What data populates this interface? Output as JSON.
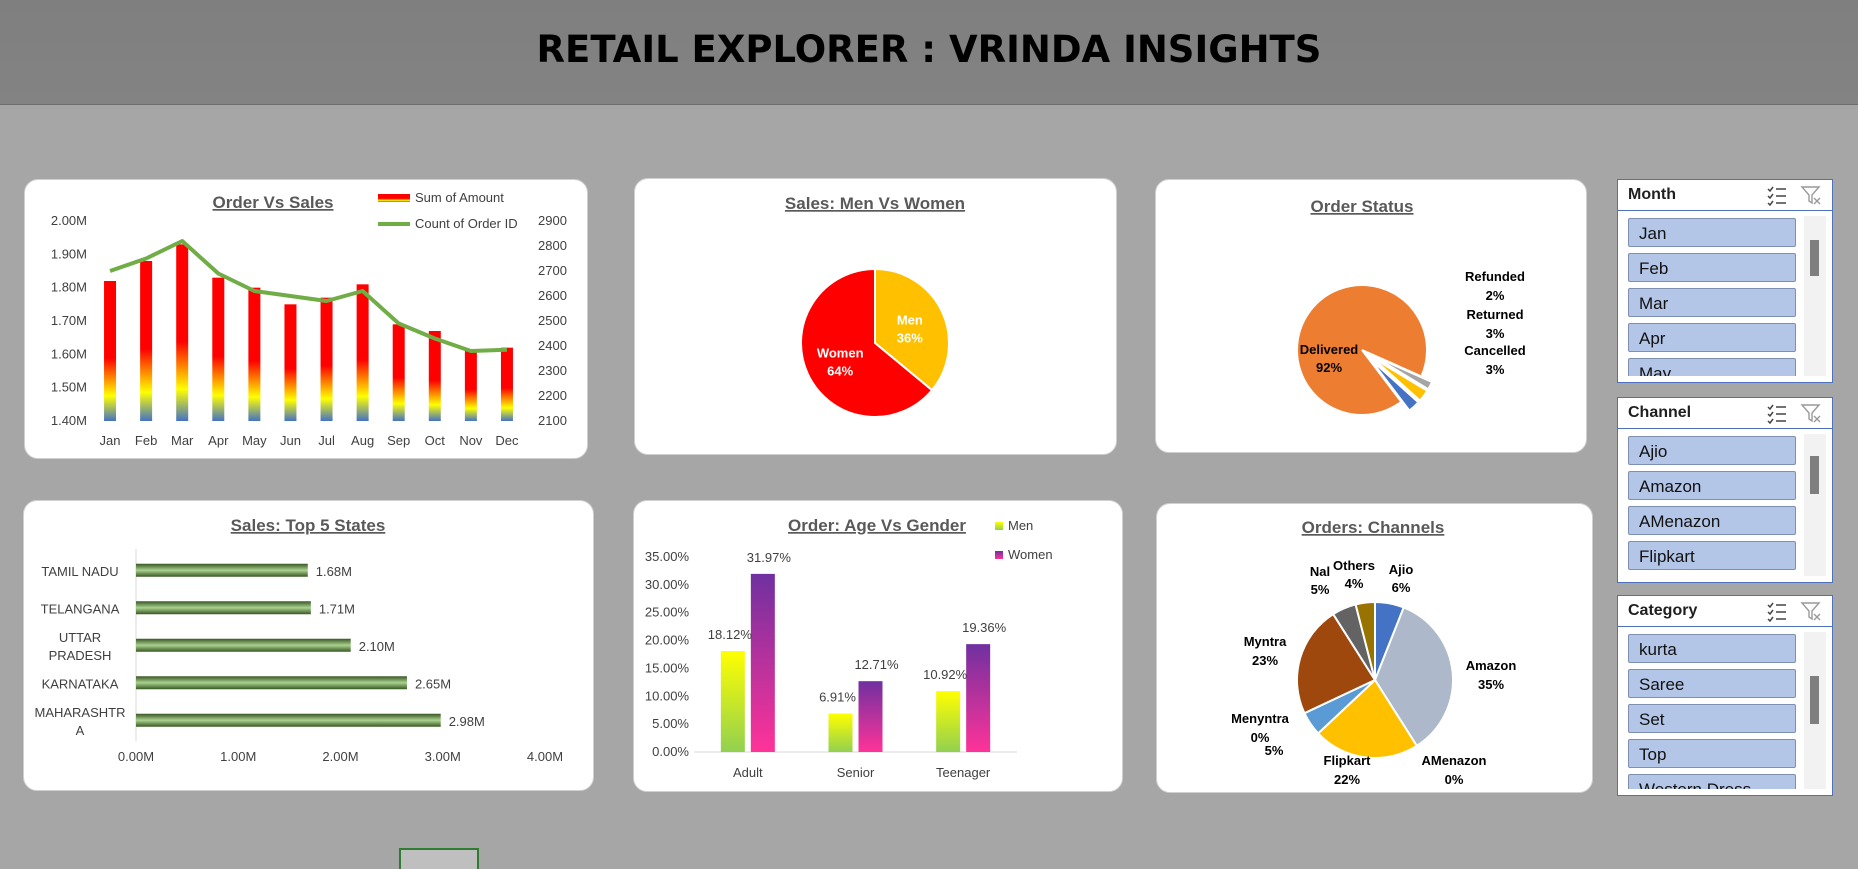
{
  "header": {
    "title": "RETAIL EXPLORER : VRINDA INSIGHTS"
  },
  "charts": {
    "order_sales": {
      "title": "Order Vs Sales",
      "legend": [
        "Sum of Amount",
        "Count of Order ID"
      ]
    },
    "men_women": {
      "title": "Sales: Men Vs Women"
    },
    "order_status": {
      "title": "Order Status"
    },
    "top_states": {
      "title": "Sales: Top 5 States"
    },
    "age_gender": {
      "title": "Order: Age Vs Gender",
      "legend": [
        "Men",
        "Women"
      ]
    },
    "channels": {
      "title": "Orders: Channels"
    }
  },
  "chart_data": [
    {
      "type": "bar",
      "title": "Order Vs Sales",
      "categories": [
        "Jan",
        "Feb",
        "Mar",
        "Apr",
        "May",
        "Jun",
        "Jul",
        "Aug",
        "Sep",
        "Oct",
        "Nov",
        "Dec"
      ],
      "series": [
        {
          "name": "Sum of Amount",
          "type": "bar",
          "axis": "left",
          "values": [
            1.82,
            1.88,
            1.93,
            1.83,
            1.8,
            1.75,
            1.77,
            1.81,
            1.69,
            1.67,
            1.61,
            1.62
          ]
        },
        {
          "name": "Count of Order ID",
          "type": "line",
          "axis": "right",
          "values": [
            2700,
            2750,
            2820,
            2690,
            2620,
            2600,
            2580,
            2620,
            2490,
            2430,
            2380,
            2385
          ]
        }
      ],
      "yleft": {
        "range": [
          1.4,
          2.0
        ],
        "ticks": [
          "1.40M",
          "1.50M",
          "1.60M",
          "1.70M",
          "1.80M",
          "1.90M",
          "2.00M"
        ]
      },
      "yright": {
        "range": [
          2100,
          2900
        ],
        "ticks": [
          "2100",
          "2200",
          "2300",
          "2400",
          "2500",
          "2600",
          "2700",
          "2800",
          "2900"
        ]
      },
      "legend": "top-right",
      "colors": {
        "line": "#70ad47",
        "bar_top": "#ff0000",
        "bar_mid": "#ffff00",
        "bar_bottom": "#4472c4"
      }
    },
    {
      "type": "pie",
      "title": "Sales: Men Vs Women",
      "slices": [
        {
          "label": "Men",
          "value": 36,
          "text": "36%",
          "color": "#ffc000"
        },
        {
          "label": "Women",
          "value": 64,
          "text": "64%",
          "color": "#ff0000"
        }
      ]
    },
    {
      "type": "pie",
      "title": "Order Status",
      "slices": [
        {
          "label": "Delivered",
          "value": 92,
          "text": "92%",
          "color": "#ed7d31"
        },
        {
          "label": "Refunded",
          "value": 2,
          "text": "2%",
          "color": "#a5a5a5"
        },
        {
          "label": "Returned",
          "value": 3,
          "text": "3%",
          "color": "#ffc000"
        },
        {
          "label": "Cancelled",
          "value": 3,
          "text": "3%",
          "color": "#4472c4"
        }
      ]
    },
    {
      "type": "bar",
      "orientation": "horizontal",
      "title": "Sales: Top 5 States",
      "categories": [
        "TAMIL NADU",
        "TELANGANA",
        "UTTAR PRADESH",
        "KARNATAKA",
        "MAHARASHTRA"
      ],
      "category_lines": [
        [
          "TAMIL NADU"
        ],
        [
          "TELANGANA"
        ],
        [
          "UTTAR",
          "PRADESH"
        ],
        [
          "KARNATAKA"
        ],
        [
          "MAHARASHTR",
          "A"
        ]
      ],
      "values": [
        1.68,
        1.71,
        2.1,
        2.65,
        2.98
      ],
      "data_labels": [
        "1.68M",
        "1.71M",
        "2.10M",
        "2.65M",
        "2.98M"
      ],
      "xlim": [
        0,
        4
      ],
      "xticks": [
        "0.00M",
        "1.00M",
        "2.00M",
        "3.00M",
        "4.00M"
      ],
      "color": "#548235"
    },
    {
      "type": "bar",
      "title": "Order: Age Vs Gender",
      "categories": [
        "Adult",
        "Senior",
        "Teenager"
      ],
      "series": [
        {
          "name": "Men",
          "values": [
            18.12,
            6.91,
            10.92
          ],
          "labels": [
            "18.12%",
            "6.91%",
            "10.92%"
          ]
        },
        {
          "name": "Women",
          "values": [
            31.97,
            12.71,
            19.36
          ],
          "labels": [
            "31.97%",
            "12.71%",
            "19.36%"
          ]
        }
      ],
      "ylim": [
        0,
        35
      ],
      "yticks": [
        "0.00%",
        "5.00%",
        "10.00%",
        "15.00%",
        "20.00%",
        "25.00%",
        "30.00%",
        "35.00%"
      ],
      "legend": "top-right",
      "colors": {
        "men_top": "#ffff00",
        "men_bottom": "#92d050",
        "women_top": "#7030a0",
        "women_bottom": "#ff3399"
      }
    },
    {
      "type": "pie",
      "title": "Orders: Channels",
      "slices": [
        {
          "label": "Ajio",
          "value": 6,
          "text": "6%",
          "color": "#4472c4"
        },
        {
          "label": "Amazon",
          "value": 35,
          "text": "35%",
          "color": "#adb9ca"
        },
        {
          "label": "AMenazon",
          "value": 0,
          "text": "0%",
          "color": "#ed7d31"
        },
        {
          "label": "Flipkart",
          "value": 22,
          "text": "22%",
          "color": "#ffc000"
        },
        {
          "label": "Menyntra",
          "value": 0,
          "text": "0%",
          "color": "#70ad47"
        },
        {
          "label": "",
          "value": 5,
          "text": "5%",
          "color": "#5b9bd5"
        },
        {
          "label": "Myntra",
          "value": 23,
          "text": "23%",
          "color": "#9e480e"
        },
        {
          "label": "Nal",
          "value": 5,
          "text": "5%",
          "color": "#636363"
        },
        {
          "label": "Others",
          "value": 4,
          "text": "4%",
          "color": "#997300"
        }
      ]
    }
  ],
  "slicers": {
    "month": {
      "title": "Month",
      "items": [
        "Jan",
        "Feb",
        "Mar",
        "Apr",
        "May"
      ]
    },
    "channel": {
      "title": "Channel",
      "items": [
        "Ajio",
        "Amazon",
        "AMenazon",
        "Flipkart"
      ]
    },
    "category": {
      "title": "Category",
      "items": [
        "kurta",
        "Saree",
        "Set",
        "Top",
        "Western Dress"
      ]
    }
  }
}
